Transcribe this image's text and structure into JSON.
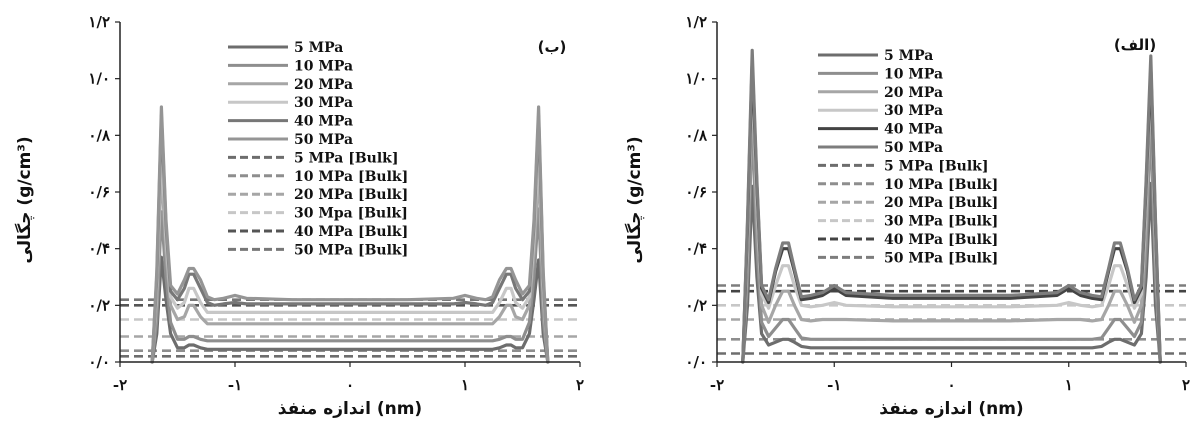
{
  "chart_data": [
    {
      "type": "line",
      "panel_label": "(ب)",
      "xlabel": "اندازه منفذ (nm)",
      "ylabel": "چگالی (g/cm³)",
      "xlim": [
        -2,
        2
      ],
      "ylim": [
        0.0,
        1.2
      ],
      "x_ticks": [
        -2,
        -1,
        0,
        1,
        2
      ],
      "x_tick_labels": [
        "-۲",
        "-۱",
        "۰",
        "۱",
        "۲"
      ],
      "y_ticks": [
        0.0,
        0.2,
        0.4,
        0.6,
        0.8,
        1.0,
        1.2
      ],
      "y_tick_labels": [
        "۰/۰",
        "۰/۲",
        "۰/۴",
        "۰/۶",
        "۰/۸",
        "۱/۰",
        "۱/۲"
      ],
      "legend_position": "top-center",
      "profile_x": [
        -1.72,
        -1.68,
        -1.64,
        -1.6,
        -1.56,
        -1.5,
        -1.44,
        -1.4,
        -1.36,
        -1.3,
        -1.24,
        -1.18,
        -1.1,
        -1.0,
        -0.9,
        -0.5,
        0.0,
        0.5,
        0.9,
        1.0,
        1.1,
        1.18,
        1.24,
        1.3,
        1.36,
        1.4,
        1.44,
        1.5,
        1.56,
        1.6,
        1.64,
        1.68,
        1.72
      ],
      "series": [
        {
          "name": "5 MPa",
          "color": "#6d6d6d",
          "dashed": false,
          "values": [
            0.0,
            0.1,
            0.37,
            0.22,
            0.1,
            0.05,
            0.05,
            0.06,
            0.06,
            0.05,
            0.045,
            0.045,
            0.045,
            0.045,
            0.045,
            0.045,
            0.045,
            0.045,
            0.045,
            0.045,
            0.045,
            0.045,
            0.045,
            0.05,
            0.06,
            0.06,
            0.05,
            0.05,
            0.1,
            0.22,
            0.36,
            0.1,
            0.0
          ]
        },
        {
          "name": "10 MPa",
          "color": "#8e8e8e",
          "dashed": false,
          "values": [
            0.0,
            0.15,
            0.53,
            0.3,
            0.14,
            0.08,
            0.08,
            0.09,
            0.09,
            0.08,
            0.075,
            0.075,
            0.075,
            0.075,
            0.075,
            0.075,
            0.075,
            0.075,
            0.075,
            0.075,
            0.075,
            0.075,
            0.075,
            0.08,
            0.09,
            0.09,
            0.08,
            0.08,
            0.14,
            0.3,
            0.54,
            0.15,
            0.0
          ]
        },
        {
          "name": "20 MPa",
          "color": "#a6a6a6",
          "dashed": false,
          "values": [
            0.0,
            0.22,
            0.69,
            0.39,
            0.2,
            0.15,
            0.16,
            0.2,
            0.2,
            0.16,
            0.135,
            0.135,
            0.135,
            0.135,
            0.135,
            0.135,
            0.135,
            0.135,
            0.135,
            0.135,
            0.135,
            0.135,
            0.135,
            0.16,
            0.2,
            0.2,
            0.16,
            0.15,
            0.2,
            0.39,
            0.69,
            0.22,
            0.0
          ]
        },
        {
          "name": "30 MPa",
          "color": "#c7c7c7",
          "dashed": false,
          "values": [
            0.0,
            0.27,
            0.78,
            0.44,
            0.23,
            0.19,
            0.21,
            0.26,
            0.26,
            0.21,
            0.175,
            0.175,
            0.175,
            0.175,
            0.175,
            0.175,
            0.175,
            0.175,
            0.175,
            0.175,
            0.175,
            0.175,
            0.175,
            0.21,
            0.26,
            0.26,
            0.21,
            0.19,
            0.23,
            0.44,
            0.78,
            0.27,
            0.0
          ]
        },
        {
          "name": "40 MPa",
          "color": "#777777",
          "dashed": false,
          "values": [
            0.0,
            0.3,
            0.87,
            0.48,
            0.25,
            0.22,
            0.26,
            0.31,
            0.31,
            0.26,
            0.21,
            0.2,
            0.205,
            0.21,
            0.205,
            0.205,
            0.205,
            0.205,
            0.205,
            0.21,
            0.205,
            0.2,
            0.21,
            0.26,
            0.31,
            0.31,
            0.26,
            0.22,
            0.25,
            0.48,
            0.87,
            0.3,
            0.0
          ]
        },
        {
          "name": "50 MPa",
          "color": "#959595",
          "dashed": false,
          "values": [
            0.0,
            0.32,
            0.9,
            0.5,
            0.27,
            0.24,
            0.29,
            0.33,
            0.33,
            0.29,
            0.23,
            0.22,
            0.225,
            0.235,
            0.225,
            0.22,
            0.22,
            0.22,
            0.225,
            0.235,
            0.225,
            0.22,
            0.23,
            0.29,
            0.33,
            0.33,
            0.29,
            0.24,
            0.27,
            0.5,
            0.9,
            0.32,
            0.0
          ]
        },
        {
          "name": "5 MPa [Bulk]",
          "color": "#6d6d6d",
          "dashed": true,
          "bulk_value": 0.02
        },
        {
          "name": "10 MPa [Bulk]",
          "color": "#8e8e8e",
          "dashed": true,
          "bulk_value": 0.04
        },
        {
          "name": "20 MPa [Bulk]",
          "color": "#a6a6a6",
          "dashed": true,
          "bulk_value": 0.09
        },
        {
          "name": "30 Mpa [Bulk]",
          "color": "#c7c7c7",
          "dashed": true,
          "bulk_value": 0.15
        },
        {
          "name": "40 MPa [Bulk]",
          "color": "#555555",
          "dashed": true,
          "bulk_value": 0.2
        },
        {
          "name": "50 MPa [Bulk]",
          "color": "#777777",
          "dashed": true,
          "bulk_value": 0.22
        }
      ]
    },
    {
      "type": "line",
      "panel_label": "(الف)",
      "xlabel": "اندازه منفذ (nm)",
      "ylabel": "چگالی (g/cm³)",
      "xlim": [
        -2,
        2
      ],
      "ylim": [
        0.0,
        1.2
      ],
      "x_ticks": [
        -2,
        -1,
        0,
        1,
        2
      ],
      "x_tick_labels": [
        "-۲",
        "-۱",
        "۰",
        "۱",
        "۲"
      ],
      "y_ticks": [
        0.0,
        0.2,
        0.4,
        0.6,
        0.8,
        1.0,
        1.2
      ],
      "y_tick_labels": [
        "۰/۰",
        "۰/۲",
        "۰/۴",
        "۰/۶",
        "۰/۸",
        "۱/۰",
        "۱/۲"
      ],
      "legend_position": "top-center",
      "profile_x": [
        -1.78,
        -1.74,
        -1.7,
        -1.66,
        -1.62,
        -1.56,
        -1.5,
        -1.44,
        -1.39,
        -1.34,
        -1.28,
        -1.2,
        -1.1,
        -1.0,
        -0.9,
        -0.5,
        0.0,
        0.5,
        0.9,
        1.0,
        1.1,
        1.2,
        1.28,
        1.34,
        1.39,
        1.44,
        1.5,
        1.56,
        1.62,
        1.66,
        1.7,
        1.74,
        1.78
      ],
      "series": [
        {
          "name": "5 MPa",
          "color": "#6d6d6d",
          "dashed": false,
          "values": [
            0.0,
            0.2,
            0.62,
            0.3,
            0.1,
            0.06,
            0.07,
            0.08,
            0.08,
            0.07,
            0.055,
            0.05,
            0.05,
            0.05,
            0.05,
            0.05,
            0.05,
            0.05,
            0.05,
            0.05,
            0.05,
            0.05,
            0.055,
            0.07,
            0.08,
            0.08,
            0.07,
            0.06,
            0.1,
            0.3,
            0.63,
            0.2,
            0.0
          ]
        },
        {
          "name": "10 MPa",
          "color": "#8e8e8e",
          "dashed": false,
          "values": [
            0.0,
            0.3,
            0.85,
            0.4,
            0.14,
            0.09,
            0.12,
            0.15,
            0.15,
            0.12,
            0.085,
            0.08,
            0.08,
            0.08,
            0.08,
            0.08,
            0.08,
            0.08,
            0.08,
            0.08,
            0.08,
            0.08,
            0.085,
            0.12,
            0.15,
            0.15,
            0.12,
            0.09,
            0.14,
            0.4,
            0.85,
            0.3,
            0.0
          ]
        },
        {
          "name": "20 MPa",
          "color": "#a6a6a6",
          "dashed": false,
          "values": [
            0.0,
            0.38,
            0.98,
            0.5,
            0.2,
            0.14,
            0.2,
            0.25,
            0.25,
            0.2,
            0.15,
            0.145,
            0.15,
            0.15,
            0.15,
            0.145,
            0.145,
            0.145,
            0.15,
            0.15,
            0.15,
            0.145,
            0.15,
            0.2,
            0.25,
            0.25,
            0.2,
            0.14,
            0.2,
            0.5,
            0.98,
            0.38,
            0.0
          ]
        },
        {
          "name": "30 MPa",
          "color": "#c7c7c7",
          "dashed": false,
          "values": [
            0.0,
            0.45,
            1.04,
            0.58,
            0.24,
            0.19,
            0.27,
            0.34,
            0.34,
            0.27,
            0.2,
            0.195,
            0.2,
            0.21,
            0.2,
            0.195,
            0.195,
            0.195,
            0.2,
            0.21,
            0.2,
            0.195,
            0.2,
            0.27,
            0.34,
            0.34,
            0.27,
            0.19,
            0.24,
            0.58,
            1.04,
            0.45,
            0.0
          ]
        },
        {
          "name": "40 MPa",
          "color": "#444444",
          "dashed": false,
          "values": [
            0.0,
            0.48,
            1.06,
            0.62,
            0.26,
            0.21,
            0.32,
            0.4,
            0.4,
            0.32,
            0.22,
            0.225,
            0.235,
            0.26,
            0.235,
            0.225,
            0.225,
            0.225,
            0.235,
            0.26,
            0.235,
            0.225,
            0.22,
            0.32,
            0.4,
            0.4,
            0.32,
            0.21,
            0.26,
            0.62,
            1.04,
            0.48,
            0.0
          ]
        },
        {
          "name": "50 MPa",
          "color": "#7d7d7d",
          "dashed": false,
          "values": [
            0.0,
            0.5,
            1.1,
            0.64,
            0.27,
            0.22,
            0.33,
            0.42,
            0.42,
            0.33,
            0.23,
            0.235,
            0.245,
            0.27,
            0.245,
            0.235,
            0.235,
            0.235,
            0.245,
            0.27,
            0.245,
            0.235,
            0.23,
            0.33,
            0.42,
            0.42,
            0.33,
            0.22,
            0.27,
            0.64,
            1.08,
            0.5,
            0.0
          ]
        },
        {
          "name": "5 MPa [Bulk]",
          "color": "#6d6d6d",
          "dashed": true,
          "bulk_value": 0.03
        },
        {
          "name": "10 MPa [Bulk]",
          "color": "#8e8e8e",
          "dashed": true,
          "bulk_value": 0.08
        },
        {
          "name": "20 MPa [Bulk]",
          "color": "#a6a6a6",
          "dashed": true,
          "bulk_value": 0.15
        },
        {
          "name": "30 MPa [Bulk]",
          "color": "#c7c7c7",
          "dashed": true,
          "bulk_value": 0.2
        },
        {
          "name": "40 MPa [Bulk]",
          "color": "#444444",
          "dashed": true,
          "bulk_value": 0.25
        },
        {
          "name": "50 MPa [Bulk]",
          "color": "#7d7d7d",
          "dashed": true,
          "bulk_value": 0.27
        }
      ]
    }
  ]
}
